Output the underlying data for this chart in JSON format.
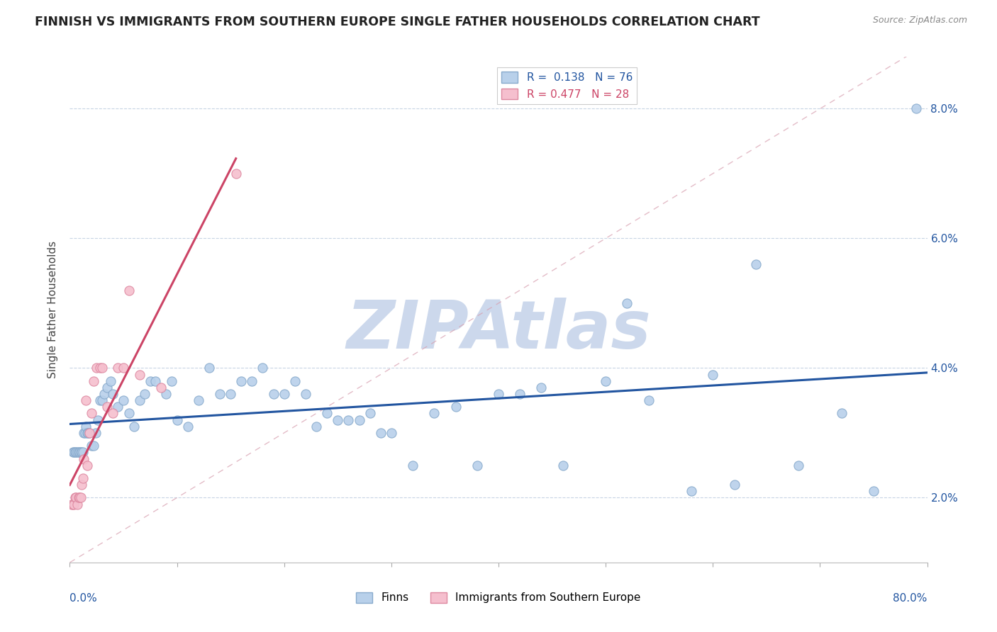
{
  "title": "FINNISH VS IMMIGRANTS FROM SOUTHERN EUROPE SINGLE FATHER HOUSEHOLDS CORRELATION CHART",
  "source": "Source: ZipAtlas.com",
  "ylabel": "Single Father Households",
  "yticks": [
    0.02,
    0.04,
    0.06,
    0.08
  ],
  "ytick_labels": [
    "2.0%",
    "4.0%",
    "6.0%",
    "8.0%"
  ],
  "legend_labels": [
    "Finns",
    "Immigrants from Southern Europe"
  ],
  "R_finns": 0.138,
  "N_finns": 76,
  "R_immigrants": 0.477,
  "N_immigrants": 28,
  "finns_color": "#b8d0ea",
  "finns_edge": "#88aacc",
  "immigrants_color": "#f5bfce",
  "immigrants_edge": "#dd88a0",
  "trend_finns_color": "#2255a0",
  "trend_immigrants_color": "#cc4466",
  "watermark_color": "#ccd8ec",
  "title_fontsize": 12.5,
  "axis_label_fontsize": 11,
  "tick_fontsize": 11,
  "legend_fontsize": 11,
  "finns_x": [
    0.3,
    0.4,
    0.5,
    0.6,
    0.7,
    0.8,
    0.9,
    1.0,
    1.1,
    1.2,
    1.3,
    1.4,
    1.5,
    1.6,
    1.7,
    1.8,
    2.0,
    2.2,
    2.4,
    2.6,
    2.8,
    3.0,
    3.2,
    3.5,
    3.8,
    4.0,
    4.5,
    5.0,
    5.5,
    6.0,
    6.5,
    7.0,
    7.5,
    8.0,
    9.0,
    9.5,
    10.0,
    11.0,
    12.0,
    13.0,
    14.0,
    15.0,
    16.0,
    17.0,
    18.0,
    19.0,
    20.0,
    21.0,
    22.0,
    23.0,
    24.0,
    25.0,
    26.0,
    27.0,
    28.0,
    29.0,
    30.0,
    32.0,
    34.0,
    36.0,
    38.0,
    40.0,
    42.0,
    44.0,
    46.0,
    50.0,
    52.0,
    54.0,
    58.0,
    60.0,
    62.0,
    64.0,
    68.0,
    72.0,
    75.0,
    79.0
  ],
  "finns_y": [
    0.027,
    0.027,
    0.027,
    0.027,
    0.027,
    0.027,
    0.027,
    0.027,
    0.027,
    0.027,
    0.03,
    0.03,
    0.031,
    0.03,
    0.03,
    0.03,
    0.028,
    0.028,
    0.03,
    0.032,
    0.035,
    0.035,
    0.036,
    0.037,
    0.038,
    0.036,
    0.034,
    0.035,
    0.033,
    0.031,
    0.035,
    0.036,
    0.038,
    0.038,
    0.036,
    0.038,
    0.032,
    0.031,
    0.035,
    0.04,
    0.036,
    0.036,
    0.038,
    0.038,
    0.04,
    0.036,
    0.036,
    0.038,
    0.036,
    0.031,
    0.033,
    0.032,
    0.032,
    0.032,
    0.033,
    0.03,
    0.03,
    0.025,
    0.033,
    0.034,
    0.025,
    0.036,
    0.036,
    0.037,
    0.025,
    0.038,
    0.05,
    0.035,
    0.021,
    0.039,
    0.022,
    0.056,
    0.025,
    0.033,
    0.021,
    0.08
  ],
  "immigrants_x": [
    0.2,
    0.3,
    0.4,
    0.5,
    0.6,
    0.7,
    0.8,
    0.9,
    1.0,
    1.1,
    1.2,
    1.3,
    1.5,
    1.6,
    1.8,
    2.0,
    2.2,
    2.5,
    2.8,
    3.0,
    3.5,
    4.0,
    4.5,
    5.0,
    5.5,
    6.5,
    8.5,
    15.5
  ],
  "immigrants_y": [
    0.019,
    0.019,
    0.019,
    0.02,
    0.02,
    0.019,
    0.02,
    0.02,
    0.02,
    0.022,
    0.023,
    0.026,
    0.035,
    0.025,
    0.03,
    0.033,
    0.038,
    0.04,
    0.04,
    0.04,
    0.034,
    0.033,
    0.04,
    0.04,
    0.052,
    0.039,
    0.037,
    0.07
  ]
}
